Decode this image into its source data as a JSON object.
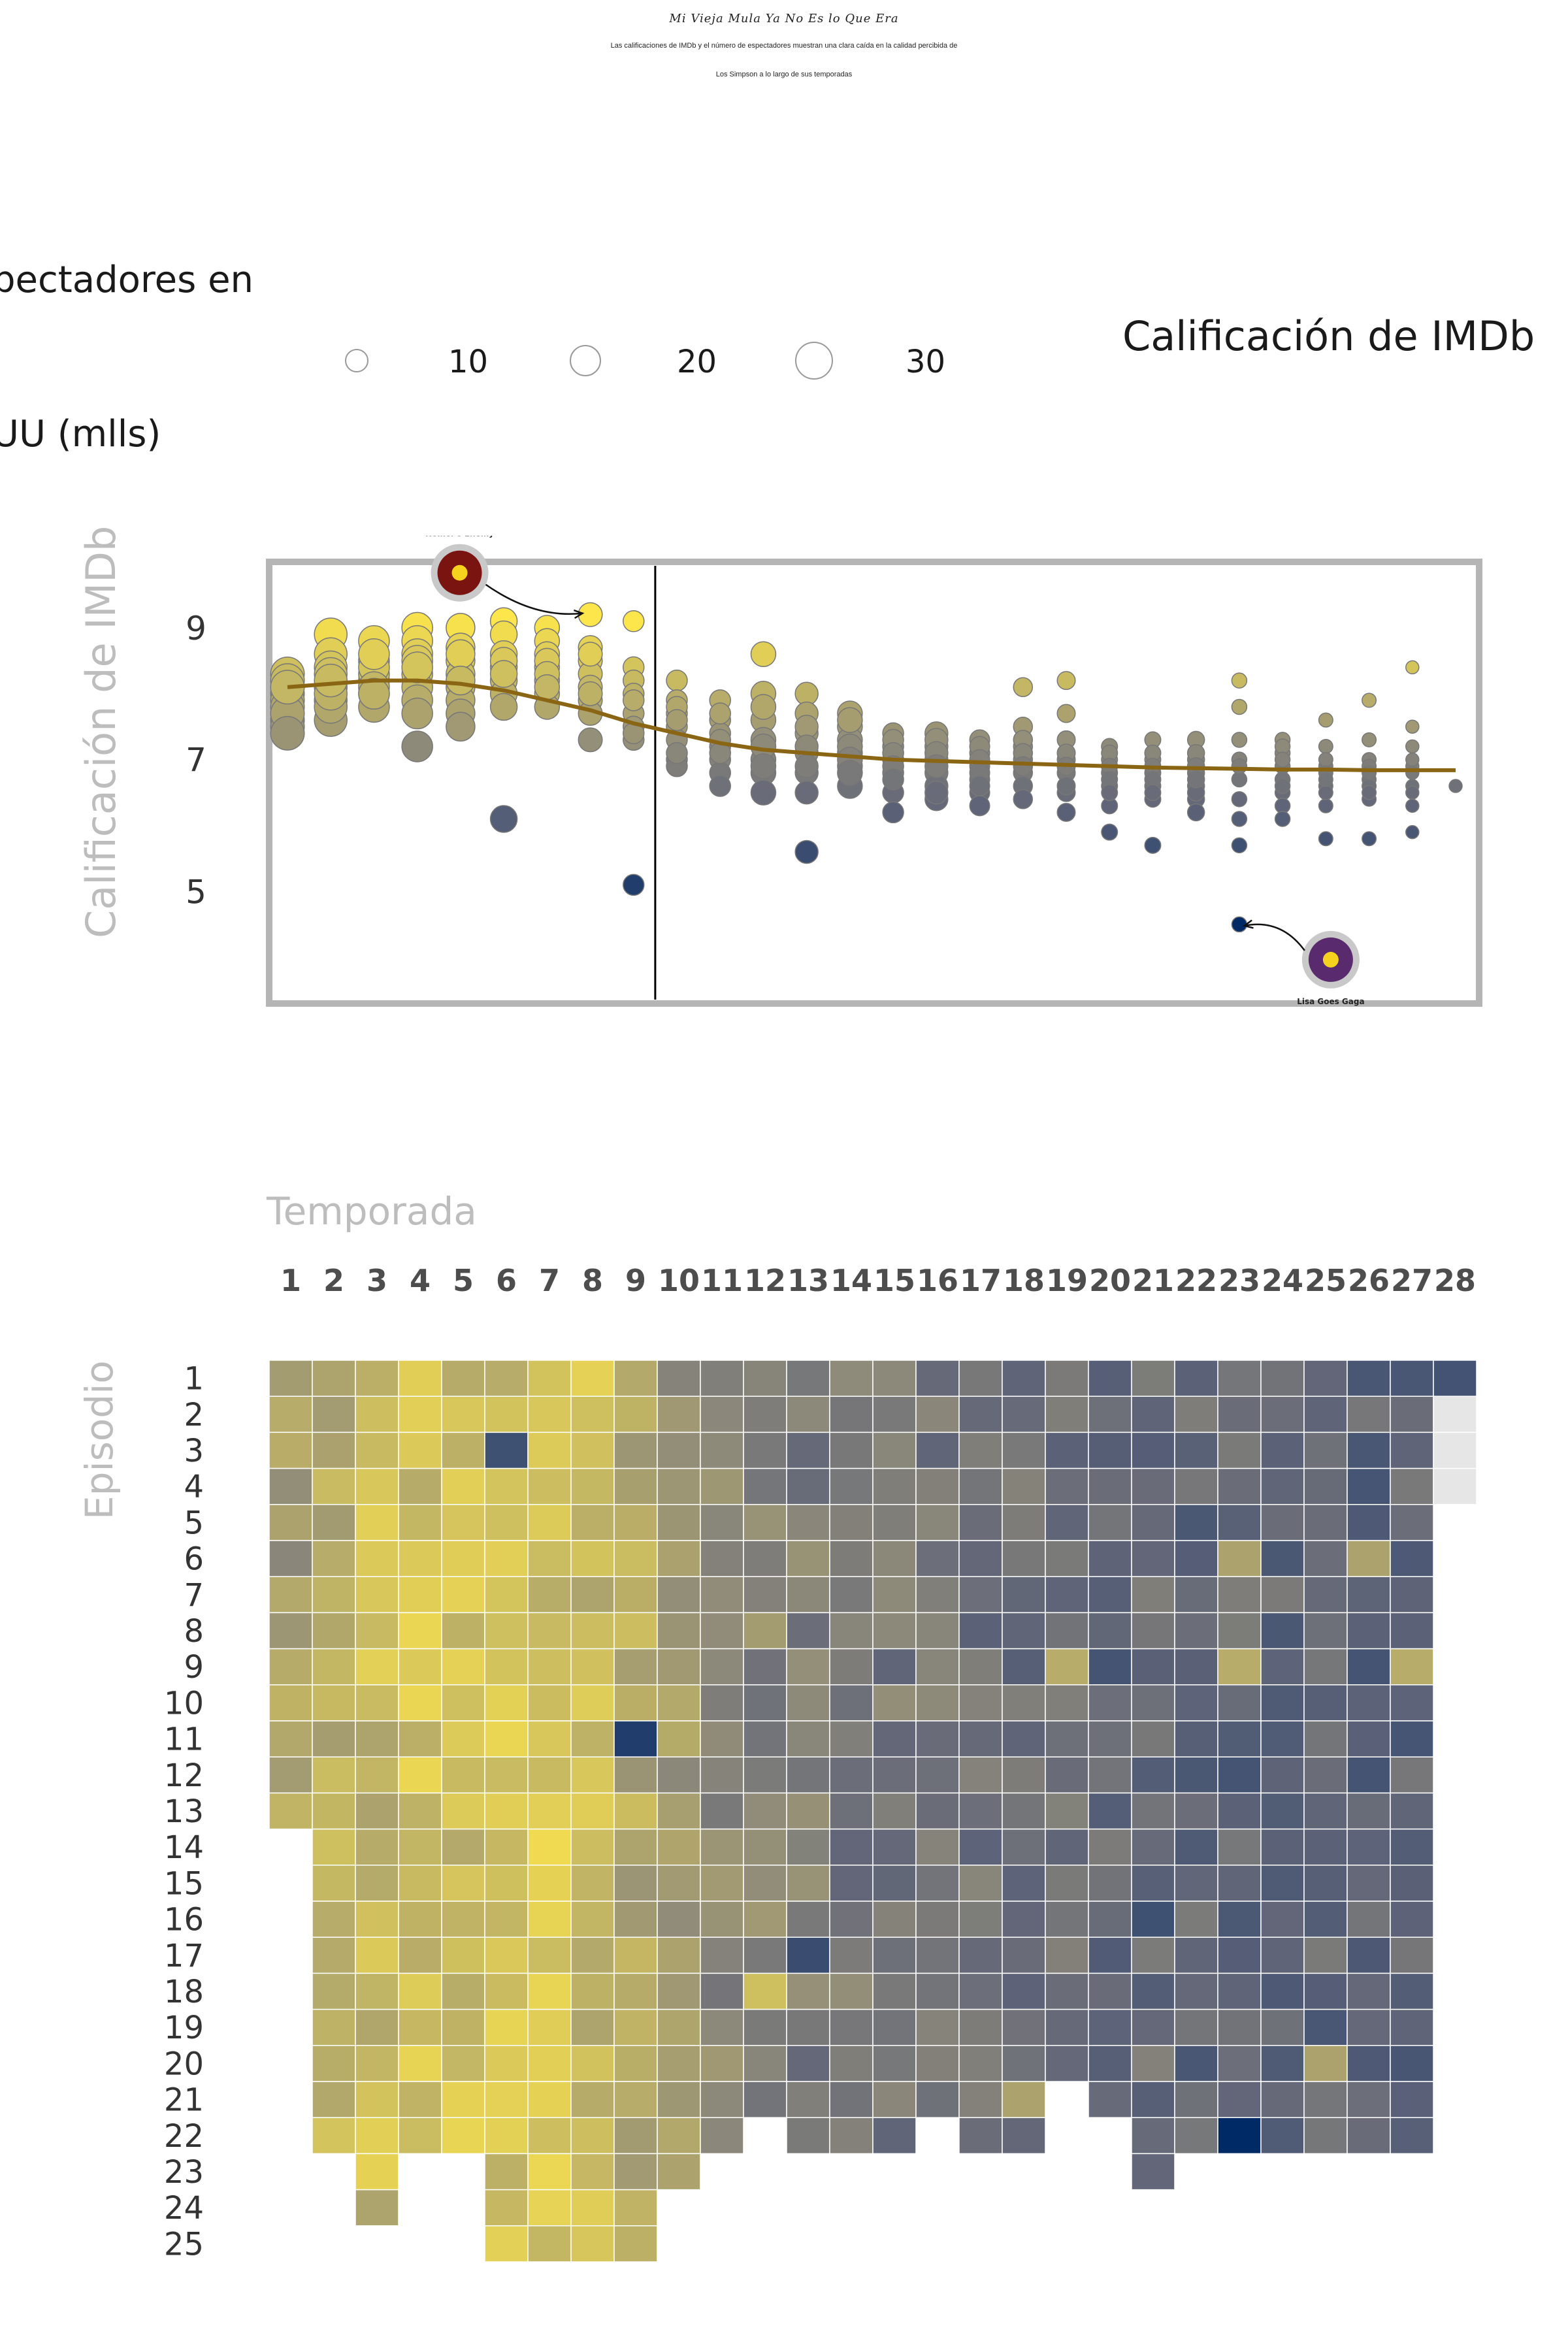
{
  "title": "Mi Vieja Mula Ya No Es lo Que Era",
  "subtitle_line1": "Las calificaciones de IMDb y el número de espectadores muestran una clara caída en la calidad percibida de",
  "subtitle_line2": "Los Simpson a lo largo de sus temporadas",
  "legend": {
    "size_title_line1": "pectadores en",
    "size_title_line2": "UU (mlls)",
    "size_labels": [
      "10",
      "20",
      "30"
    ],
    "color_title": "Calificación de IMDb"
  },
  "colors": {
    "high": "#fde64b",
    "mid": "#8e8a7a",
    "low": "#002a66",
    "trend": "#8a6514",
    "frame": "#b5b5b5"
  },
  "chart_data": [
    {
      "type": "scatter",
      "ylabel": "Calificación de IMDb",
      "yticks": [
        5,
        7,
        9
      ],
      "ylim": [
        3.3,
        10.0
      ],
      "seasons": 28,
      "divider_after_season": 9,
      "series": [
        {
          "name": "Temporada 1",
          "season": 1,
          "ratings": [
            8.3,
            8.2,
            8.0,
            7.9,
            7.8,
            7.6,
            7.5,
            7.7,
            7.4,
            8.1
          ],
          "viewers": 25
        },
        {
          "name": "Temporada 2",
          "season": 2,
          "ratings": [
            8.9,
            8.6,
            8.4,
            8.3,
            8.1,
            7.9,
            7.6,
            7.8,
            8.0,
            8.2
          ],
          "viewers": 24
        },
        {
          "name": "Temporada 3",
          "season": 3,
          "ratings": [
            8.8,
            8.5,
            8.2,
            8.0,
            7.8,
            8.3,
            8.4,
            8.1,
            8.6,
            8.0
          ],
          "viewers": 22
        },
        {
          "name": "Temporada 4",
          "season": 4,
          "ratings": [
            9.0,
            8.8,
            8.6,
            8.5,
            8.3,
            8.1,
            7.9,
            7.7,
            7.2,
            8.4
          ],
          "viewers": 22
        },
        {
          "name": "Temporada 5",
          "season": 5,
          "ratings": [
            9.0,
            8.7,
            8.5,
            8.3,
            8.1,
            7.9,
            7.7,
            7.5,
            8.6,
            8.2
          ],
          "viewers": 20
        },
        {
          "name": "Temporada 6",
          "season": 6,
          "ratings": [
            9.1,
            8.9,
            8.6,
            8.4,
            8.2,
            8.0,
            7.8,
            6.1,
            8.5,
            8.3
          ],
          "viewers": 18
        },
        {
          "name": "Temporada 7",
          "season": 7,
          "ratings": [
            9.0,
            8.8,
            8.6,
            8.4,
            8.2,
            8.0,
            7.8,
            8.5,
            8.3,
            8.1
          ],
          "viewers": 16
        },
        {
          "name": "Temporada 8",
          "season": 8,
          "ratings": [
            9.2,
            8.7,
            8.5,
            8.3,
            8.1,
            7.9,
            7.7,
            7.3,
            8.6,
            8.0
          ],
          "viewers": 15
        },
        {
          "name": "Temporada 9",
          "season": 9,
          "ratings": [
            9.1,
            8.4,
            8.2,
            8.0,
            7.7,
            7.5,
            7.3,
            5.1,
            7.9,
            7.4
          ],
          "viewers": 12
        },
        {
          "name": "Temporada 10",
          "season": 10,
          "ratings": [
            8.2,
            7.9,
            7.7,
            7.5,
            7.3,
            7.0,
            6.9,
            7.8,
            7.6,
            7.1
          ],
          "viewers": 12
        },
        {
          "name": "Temporada 11",
          "season": 11,
          "ratings": [
            7.9,
            7.6,
            7.4,
            7.2,
            7.0,
            6.8,
            6.6,
            7.7,
            7.3,
            7.1
          ],
          "viewers": 12
        },
        {
          "name": "Temporada 12",
          "season": 12,
          "ratings": [
            8.6,
            8.0,
            7.6,
            7.3,
            7.0,
            6.8,
            6.5,
            7.8,
            7.2,
            6.9
          ],
          "viewers": 16
        },
        {
          "name": "Temporada 13",
          "season": 13,
          "ratings": [
            8.0,
            7.7,
            7.4,
            7.1,
            6.8,
            6.5,
            5.6,
            7.5,
            7.2,
            6.9
          ],
          "viewers": 14
        },
        {
          "name": "Temporada 14",
          "season": 14,
          "ratings": [
            7.7,
            7.5,
            7.3,
            7.1,
            6.9,
            6.6,
            7.6,
            7.2,
            7.0,
            6.8
          ],
          "viewers": 16
        },
        {
          "name": "Temporada 15",
          "season": 15,
          "ratings": [
            7.4,
            7.2,
            7.0,
            6.8,
            6.5,
            6.2,
            7.3,
            7.1,
            6.9,
            6.7
          ],
          "viewers": 12
        },
        {
          "name": "Temporada 16",
          "season": 16,
          "ratings": [
            7.4,
            7.2,
            7.0,
            6.8,
            6.6,
            6.4,
            7.3,
            7.1,
            6.9,
            6.5
          ],
          "viewers": 14
        },
        {
          "name": "Temporada 17",
          "season": 17,
          "ratings": [
            7.3,
            7.1,
            6.9,
            6.7,
            6.5,
            6.3,
            7.2,
            7.0,
            6.8,
            6.6
          ],
          "viewers": 11
        },
        {
          "name": "Temporada 18",
          "season": 18,
          "ratings": [
            8.1,
            7.5,
            7.2,
            7.0,
            6.8,
            6.6,
            6.4,
            7.3,
            7.1,
            6.9
          ],
          "viewers": 10
        },
        {
          "name": "Temporada 19",
          "season": 19,
          "ratings": [
            8.2,
            7.7,
            7.3,
            7.0,
            6.8,
            6.5,
            6.2,
            7.1,
            6.9,
            6.6
          ],
          "viewers": 9
        },
        {
          "name": "Temporada 20",
          "season": 20,
          "ratings": [
            7.2,
            7.0,
            6.8,
            6.6,
            6.3,
            5.9,
            7.1,
            6.9,
            6.7,
            6.5
          ],
          "viewers": 7
        },
        {
          "name": "Temporada 21",
          "season": 21,
          "ratings": [
            7.3,
            7.0,
            6.8,
            6.6,
            6.4,
            5.7,
            7.1,
            6.9,
            6.7,
            6.5
          ],
          "viewers": 7
        },
        {
          "name": "Temporada 22",
          "season": 22,
          "ratings": [
            7.3,
            7.0,
            6.8,
            6.6,
            6.4,
            6.2,
            7.1,
            6.9,
            6.5,
            6.7
          ],
          "viewers": 8
        },
        {
          "name": "Temporada 23",
          "season": 23,
          "ratings": [
            8.2,
            7.8,
            7.3,
            7.0,
            6.7,
            6.4,
            6.1,
            5.7,
            4.5,
            6.9
          ],
          "viewers": 6
        },
        {
          "name": "Temporada 24",
          "season": 24,
          "ratings": [
            7.3,
            7.1,
            6.9,
            6.7,
            6.5,
            6.3,
            6.1,
            7.2,
            7.0,
            6.6
          ],
          "viewers": 6
        },
        {
          "name": "Temporada 25",
          "season": 25,
          "ratings": [
            7.6,
            7.2,
            6.9,
            6.6,
            6.3,
            5.8,
            7.0,
            6.8,
            6.5,
            6.7
          ],
          "viewers": 5
        },
        {
          "name": "Temporada 26",
          "season": 26,
          "ratings": [
            7.9,
            7.3,
            7.0,
            6.7,
            6.4,
            5.8,
            6.9,
            6.6,
            6.5,
            6.8
          ],
          "viewers": 5
        },
        {
          "name": "Temporada 27",
          "season": 27,
          "ratings": [
            8.4,
            7.5,
            7.2,
            6.9,
            6.6,
            6.3,
            5.9,
            7.0,
            6.8,
            6.5
          ],
          "viewers": 4
        },
        {
          "name": "Temporada 28",
          "season": 28,
          "ratings": [
            6.6
          ],
          "viewers": 4
        }
      ],
      "trend": {
        "x": [
          1,
          2,
          3,
          4,
          5,
          6,
          7,
          8,
          9,
          10,
          11,
          12,
          13,
          14,
          15,
          16,
          17,
          18,
          19,
          20,
          21,
          22,
          23,
          24,
          25,
          26,
          27,
          28
        ],
        "y": [
          8.1,
          8.15,
          8.2,
          8.2,
          8.15,
          8.05,
          7.9,
          7.75,
          7.55,
          7.4,
          7.25,
          7.15,
          7.1,
          7.05,
          7.0,
          6.98,
          6.96,
          6.94,
          6.92,
          6.9,
          6.88,
          6.87,
          6.86,
          6.85,
          6.85,
          6.84,
          6.84,
          6.84
        ]
      },
      "annotations": [
        {
          "text": "Homer's Enemy",
          "season": 8,
          "rating": 9.2
        },
        {
          "text": "Lisa Goes Gaga",
          "season": 23,
          "rating": 4.5
        }
      ]
    },
    {
      "type": "heatmap",
      "xlabel": "Temporada",
      "ylabel": "Episodio",
      "x": [
        "1",
        "2",
        "3",
        "4",
        "5",
        "6",
        "7",
        "8",
        "9",
        "10",
        "11",
        "12",
        "13",
        "14",
        "15",
        "16",
        "17",
        "18",
        "19",
        "20",
        "21",
        "22",
        "23",
        "24",
        "25",
        "26",
        "27",
        "28"
      ],
      "y": [
        "1",
        "2",
        "3",
        "4",
        "5",
        "6",
        "7",
        "8",
        "9",
        "10",
        "11",
        "12",
        "13",
        "14",
        "15",
        "16",
        "17",
        "18",
        "19",
        "20",
        "21",
        "22",
        "23",
        "24",
        "25"
      ],
      "episodes_per_season": [
        13,
        22,
        24,
        22,
        22,
        25,
        25,
        25,
        25,
        23,
        22,
        21,
        22,
        22,
        22,
        21,
        22,
        22,
        20,
        21,
        23,
        22,
        22,
        22,
        22,
        22,
        22,
        4
      ],
      "season_mean": [
        7.6,
        7.9,
        8.2,
        8.3,
        8.3,
        8.3,
        8.4,
        8.2,
        7.8,
        7.4,
        7.2,
        7.1,
        6.9,
        6.8,
        6.8,
        6.7,
        6.6,
        6.6,
        6.5,
        6.5,
        6.5,
        6.4,
        6.4,
        6.4,
        6.4,
        6.3,
        6.3,
        6.2
      ],
      "special_cells": [
        {
          "season": 6,
          "episode": 3,
          "rating": 5.7
        },
        {
          "season": 9,
          "episode": 11,
          "rating": 5.1
        },
        {
          "season": 13,
          "episode": 17,
          "rating": 5.6
        },
        {
          "season": 20,
          "episode": 9,
          "rating": 5.8
        },
        {
          "season": 21,
          "episode": 16,
          "rating": 5.7
        },
        {
          "season": 23,
          "episode": 22,
          "rating": 4.5
        },
        {
          "season": 23,
          "episode": 12,
          "rating": 5.8
        },
        {
          "season": 26,
          "episode": 12,
          "rating": 5.8
        },
        {
          "season": 25,
          "episode": 19,
          "rating": 5.9
        },
        {
          "season": 26,
          "episode": 1,
          "rating": 5.9
        },
        {
          "season": 27,
          "episode": 1,
          "rating": 5.9
        },
        {
          "season": 19,
          "episode": 9,
          "rating": 7.9
        },
        {
          "season": 23,
          "episode": 9,
          "rating": 7.9
        },
        {
          "season": 27,
          "episode": 9,
          "rating": 7.9
        },
        {
          "season": 12,
          "episode": 18,
          "rating": 8.3
        },
        {
          "season": 23,
          "episode": 6,
          "rating": 7.7
        },
        {
          "season": 26,
          "episode": 6,
          "rating": 7.7
        },
        {
          "season": 25,
          "episode": 20,
          "rating": 7.7
        },
        {
          "season": 18,
          "episode": 21,
          "rating": 7.7
        }
      ],
      "missing_cells": [
        {
          "season": 28,
          "episode": 2
        },
        {
          "season": 28,
          "episode": 3
        },
        {
          "season": 28,
          "episode": 4
        }
      ]
    }
  ]
}
